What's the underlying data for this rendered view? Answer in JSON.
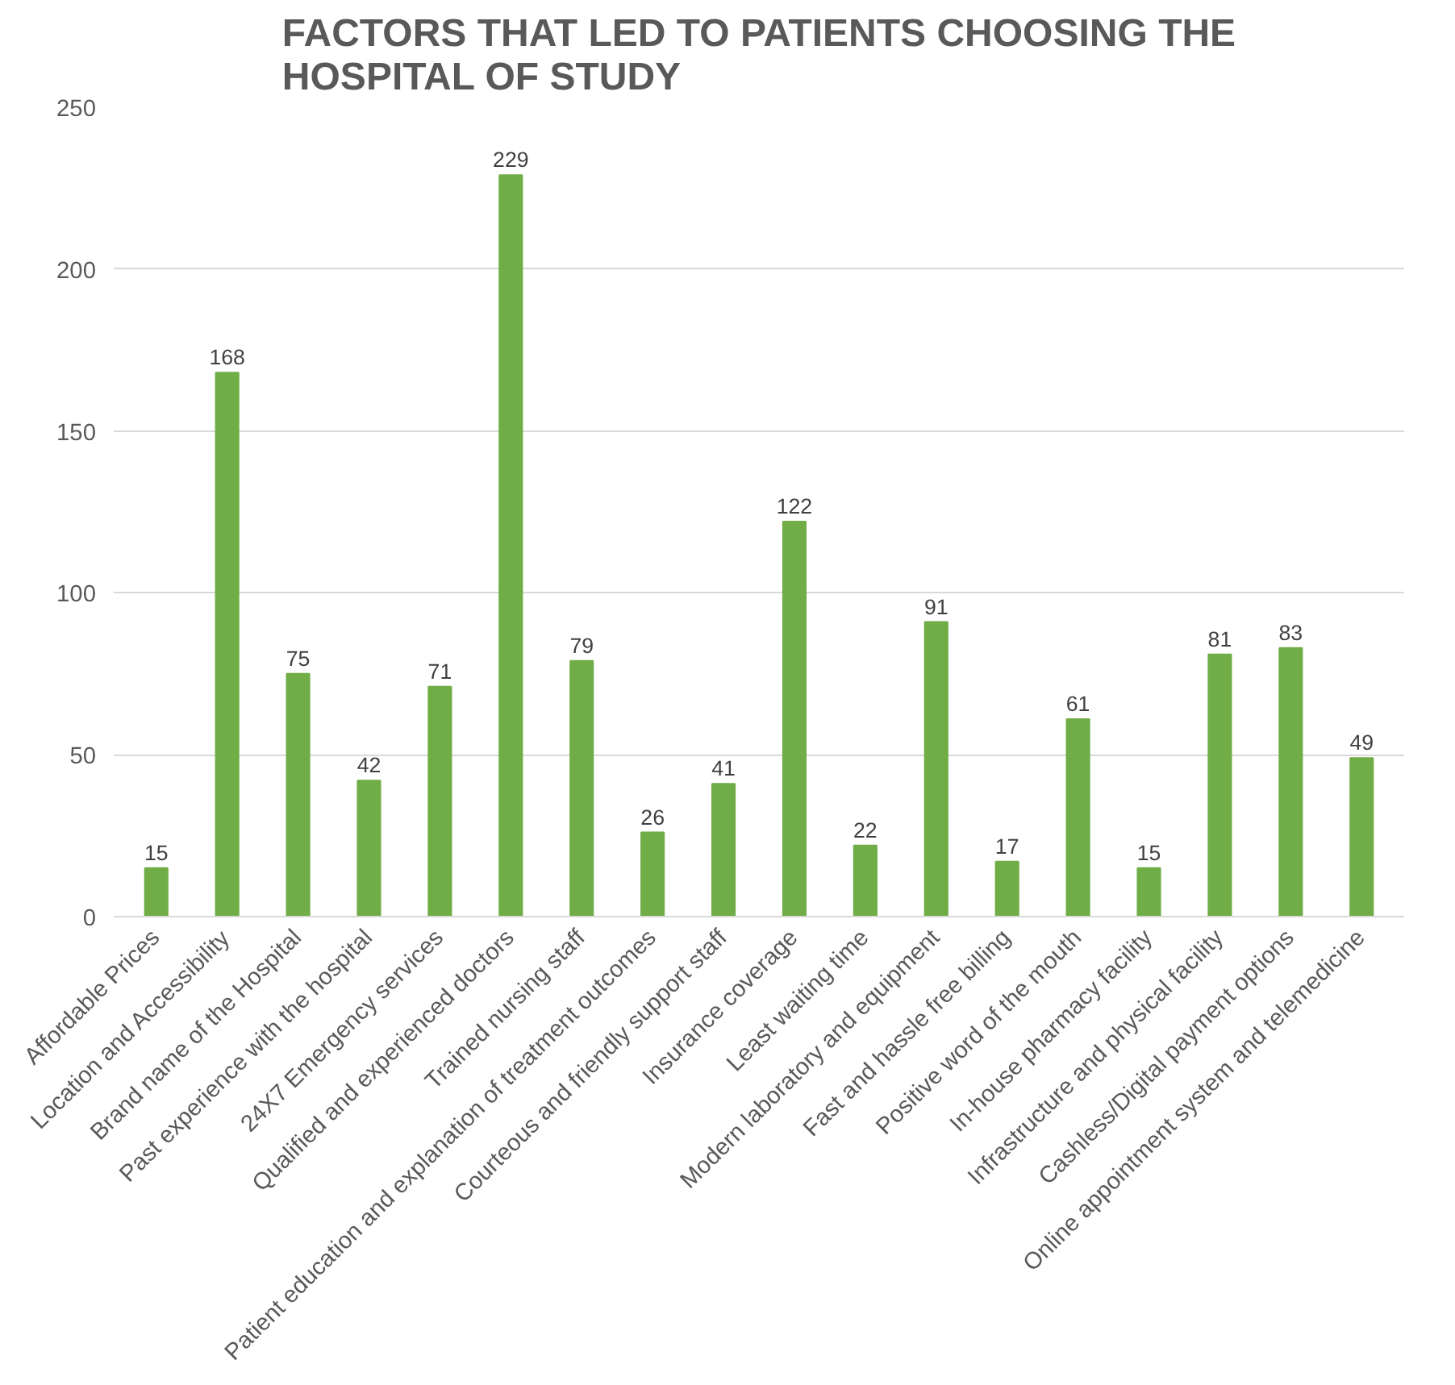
{
  "chart_data": {
    "type": "bar",
    "title": "FACTORS THAT LED TO PATIENTS CHOOSING THE HOSPITAL OF STUDY",
    "categories": [
      "Affordable Prices",
      "Location and Accessibility",
      "Brand name of the Hospital",
      "Past experience with the hospital",
      "24X7 Emergency services",
      "Qualified and experienced doctors",
      "Trained nursing staff",
      "Patient education and explanation of treatment outcomes",
      "Courteous and friendly support staff",
      "Insurance coverage",
      "Least waiting time",
      "Modern laboratory and equipment",
      "Fast and hassle free billing",
      "Positive word of the mouth",
      "In-house pharmacy facility",
      "Infrastructure and physical facility",
      "Cashless/Digital payment options",
      "Online appointment system and telemedicine"
    ],
    "values": [
      15,
      168,
      75,
      42,
      71,
      229,
      79,
      26,
      41,
      122,
      22,
      91,
      17,
      61,
      15,
      81,
      83,
      49
    ],
    "color": "#70ad47",
    "ylim": [
      0,
      250
    ],
    "yticks": [
      0,
      50,
      100,
      150,
      200,
      250
    ],
    "grid": "y",
    "data_labels": true
  }
}
